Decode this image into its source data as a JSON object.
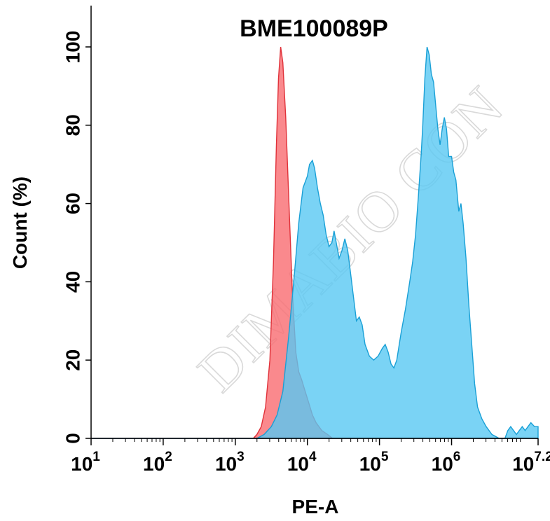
{
  "chart_data": {
    "type": "area",
    "title": "BME100089P",
    "xlabel": "PE-A",
    "ylabel": "Count (%)",
    "x_scale": "log10",
    "xlim": [
      1,
      7.2
    ],
    "ylim": [
      0,
      100
    ],
    "x_ticks": [
      {
        "exp": 1,
        "base": "10",
        "sup": "1"
      },
      {
        "exp": 2,
        "base": "10",
        "sup": "2"
      },
      {
        "exp": 3,
        "base": "10",
        "sup": "3"
      },
      {
        "exp": 4,
        "base": "10",
        "sup": "4"
      },
      {
        "exp": 5,
        "base": "10",
        "sup": "5"
      },
      {
        "exp": 6,
        "base": "10",
        "sup": "6"
      },
      {
        "exp": 7.2,
        "base": "10",
        "sup": "7.2"
      }
    ],
    "y_ticks": [
      0,
      20,
      40,
      60,
      80,
      100
    ],
    "grid": false,
    "watermark": "DIMABIO CON",
    "series": [
      {
        "color": "#f96b71",
        "stroke": "#e0323a",
        "points": [
          [
            1.0,
            0
          ],
          [
            3.25,
            0
          ],
          [
            3.3,
            1
          ],
          [
            3.36,
            3
          ],
          [
            3.42,
            8
          ],
          [
            3.48,
            20
          ],
          [
            3.53,
            45
          ],
          [
            3.57,
            75
          ],
          [
            3.6,
            92
          ],
          [
            3.63,
            100
          ],
          [
            3.66,
            96
          ],
          [
            3.7,
            82
          ],
          [
            3.74,
            62
          ],
          [
            3.79,
            38
          ],
          [
            3.84,
            22
          ],
          [
            3.88,
            17
          ],
          [
            3.92,
            15
          ],
          [
            3.97,
            12
          ],
          [
            4.02,
            9
          ],
          [
            4.07,
            6
          ],
          [
            4.12,
            4
          ],
          [
            4.2,
            2
          ],
          [
            4.28,
            1
          ],
          [
            4.35,
            0
          ],
          [
            7.2,
            0
          ]
        ]
      },
      {
        "color": "#59c8f2",
        "stroke": "#1aa0d6",
        "points": [
          [
            1.0,
            0
          ],
          [
            3.3,
            0
          ],
          [
            3.4,
            1
          ],
          [
            3.5,
            3
          ],
          [
            3.58,
            6
          ],
          [
            3.66,
            12
          ],
          [
            3.74,
            26
          ],
          [
            3.82,
            42
          ],
          [
            3.88,
            55
          ],
          [
            3.94,
            64
          ],
          [
            4.0,
            67
          ],
          [
            4.03,
            70
          ],
          [
            4.07,
            71
          ],
          [
            4.1,
            69
          ],
          [
            4.14,
            64
          ],
          [
            4.18,
            60
          ],
          [
            4.22,
            57
          ],
          [
            4.26,
            52
          ],
          [
            4.3,
            49
          ],
          [
            4.34,
            50
          ],
          [
            4.37,
            53
          ],
          [
            4.4,
            50
          ],
          [
            4.44,
            46
          ],
          [
            4.48,
            48
          ],
          [
            4.52,
            51
          ],
          [
            4.56,
            48
          ],
          [
            4.6,
            42
          ],
          [
            4.64,
            36
          ],
          [
            4.68,
            30
          ],
          [
            4.72,
            31
          ],
          [
            4.76,
            29
          ],
          [
            4.8,
            24
          ],
          [
            4.86,
            21
          ],
          [
            4.92,
            20
          ],
          [
            4.98,
            21
          ],
          [
            5.04,
            23
          ],
          [
            5.08,
            24
          ],
          [
            5.12,
            22
          ],
          [
            5.16,
            19
          ],
          [
            5.2,
            18
          ],
          [
            5.24,
            20
          ],
          [
            5.3,
            27
          ],
          [
            5.36,
            33
          ],
          [
            5.42,
            40
          ],
          [
            5.46,
            45
          ],
          [
            5.5,
            52
          ],
          [
            5.54,
            62
          ],
          [
            5.58,
            73
          ],
          [
            5.6,
            80
          ],
          [
            5.63,
            92
          ],
          [
            5.66,
            100
          ],
          [
            5.69,
            98
          ],
          [
            5.72,
            93
          ],
          [
            5.75,
            91
          ],
          [
            5.78,
            85
          ],
          [
            5.81,
            79
          ],
          [
            5.84,
            75
          ],
          [
            5.87,
            79
          ],
          [
            5.9,
            82
          ],
          [
            5.93,
            79
          ],
          [
            5.96,
            72
          ],
          [
            6.0,
            72
          ],
          [
            6.03,
            68
          ],
          [
            6.06,
            66
          ],
          [
            6.1,
            58
          ],
          [
            6.13,
            60
          ],
          [
            6.16,
            55
          ],
          [
            6.2,
            46
          ],
          [
            6.24,
            34
          ],
          [
            6.28,
            24
          ],
          [
            6.32,
            14
          ],
          [
            6.36,
            8
          ],
          [
            6.42,
            5
          ],
          [
            6.48,
            3
          ],
          [
            6.56,
            1
          ],
          [
            6.66,
            0
          ],
          [
            6.74,
            0
          ],
          [
            6.78,
            2
          ],
          [
            6.82,
            3
          ],
          [
            6.86,
            2
          ],
          [
            6.9,
            1
          ],
          [
            6.94,
            2
          ],
          [
            6.98,
            3
          ],
          [
            7.02,
            2
          ],
          [
            7.06,
            3
          ],
          [
            7.1,
            4
          ],
          [
            7.15,
            3
          ],
          [
            7.2,
            3
          ],
          [
            7.2,
            0
          ]
        ]
      }
    ]
  }
}
